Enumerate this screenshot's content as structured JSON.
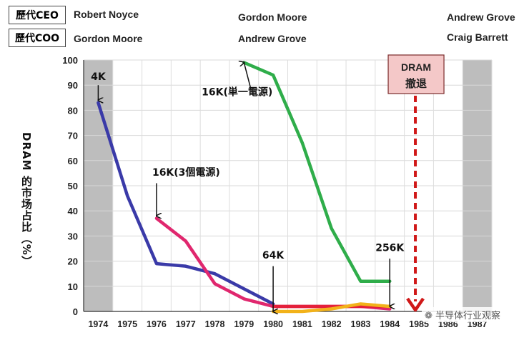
{
  "leaders": {
    "ceo_label": "歷代CEO",
    "coo_label": "歷代COO",
    "ceo": [
      "Robert Noyce",
      "Gordon Moore",
      "Andrew Grove"
    ],
    "coo": [
      "Gordon Moore",
      "Andrew Grove",
      "Craig Barrett"
    ]
  },
  "watermark": "半导体行业观察",
  "colors": {
    "series_4k": "#3a3aa8",
    "series_16k3": "#e0276e",
    "series_16k1": "#2fad4a",
    "series_64k": "#e4203b",
    "series_256k": "#f2b21a",
    "shade": "#bdbdbd",
    "dram_exit_box": "#f4c8c8",
    "dram_exit_arrow": "#d01818"
  },
  "chart_data": {
    "type": "line",
    "ylabel": "DRAM 的市场占比（%）",
    "xlabel": "",
    "ylim": [
      0,
      100
    ],
    "yticks": [
      0,
      10,
      20,
      30,
      40,
      50,
      60,
      70,
      80,
      90,
      100
    ],
    "categories": [
      "1974",
      "1975",
      "1976",
      "1977",
      "1978",
      "1979",
      "1980",
      "1981",
      "1982",
      "1983",
      "1984",
      "1985",
      "1986",
      "1987"
    ],
    "grid": true,
    "shaded_years": [
      "1974",
      "1987"
    ],
    "series": [
      {
        "name": "4K",
        "x": [
          1974,
          1975,
          1976,
          1977,
          1978,
          1979,
          1980
        ],
        "values": [
          83,
          46,
          19,
          18,
          15,
          9,
          3
        ]
      },
      {
        "name": "16K(3個電源)",
        "x": [
          1976,
          1977,
          1978,
          1979,
          1980,
          1981,
          1982,
          1983,
          1984
        ],
        "values": [
          37,
          28,
          11,
          5,
          2,
          2,
          2,
          2,
          1
        ]
      },
      {
        "name": "16K(単一電源)",
        "x": [
          1979,
          1980,
          1981,
          1982,
          1983,
          1984
        ],
        "values": [
          99,
          94,
          67,
          33,
          12,
          12
        ]
      },
      {
        "name": "64K",
        "x": [
          1980,
          1981,
          1982,
          1983,
          1984
        ],
        "values": [
          2,
          2,
          2,
          2,
          2
        ]
      },
      {
        "name": "256K",
        "x": [
          1980,
          1981,
          1982,
          1983,
          1984
        ],
        "values": [
          0,
          0,
          1,
          3,
          2
        ]
      }
    ],
    "annotations": [
      {
        "text": "4K",
        "x": 1974,
        "y": 83
      },
      {
        "text": "16K(3個電源)",
        "x": 1976,
        "y": 37
      },
      {
        "text": "16K(単一電源)",
        "x": 1979,
        "y": 99
      },
      {
        "text": "64K",
        "x": 1980,
        "y": 0
      },
      {
        "text": "256K",
        "x": 1984,
        "y": 0
      }
    ],
    "event": {
      "text_line1": "DRAM",
      "text_line2": "撤退",
      "x": 1985
    }
  }
}
